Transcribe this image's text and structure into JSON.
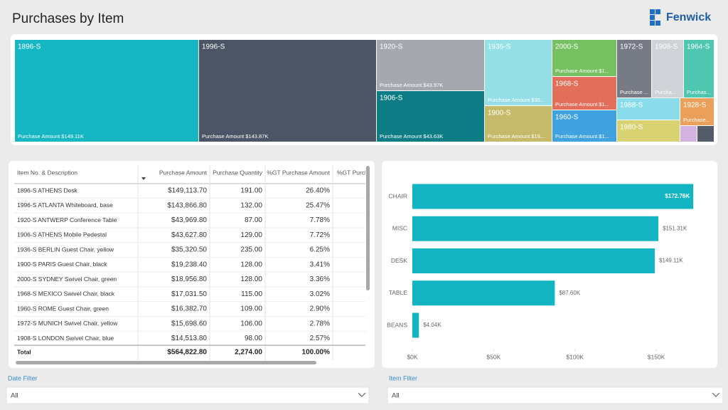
{
  "header": {
    "title": "Purchases by Item",
    "logo": "Fenwick"
  },
  "treemap": {
    "tiles": [
      {
        "label": "1896-S",
        "value_label": "Purchase Amount $149.11K",
        "color": "#16b7c3"
      },
      {
        "label": "1996-S",
        "value_label": "Purchase Amount $143.87K",
        "color": "#4c5566"
      },
      {
        "label": "1920-S",
        "value_label": "Purchase Amount $43.97K",
        "color": "#a5a8ae"
      },
      {
        "label": "1906-S",
        "value_label": "Purchase Amount $43.63K",
        "color": "#0e7c84"
      },
      {
        "label": "1936-S",
        "value_label": "Purchase Amount $35...",
        "color": "#95dfe6"
      },
      {
        "label": "1900-S",
        "value_label": "Purchase Amount $19...",
        "color": "#c5ba6a"
      },
      {
        "label": "2000-S",
        "value_label": "Purchase Amount $1...",
        "color": "#77c062"
      },
      {
        "label": "1968-S",
        "value_label": "Purchase Amount $1...",
        "color": "#e36f5a"
      },
      {
        "label": "1960-S",
        "value_label": "Purchase Amount $1...",
        "color": "#40a2de"
      },
      {
        "label": "1972-S",
        "value_label": "Purchase ...",
        "color": "#767b85"
      },
      {
        "label": "1908-S",
        "value_label": "Purcha...",
        "color": "#cfd2d6"
      },
      {
        "label": "1964-S",
        "value_label": "Purchas...",
        "color": "#4fc7b0"
      },
      {
        "label": "1988-S",
        "value_label": null,
        "color": "#8adcea"
      },
      {
        "label": "1980-S",
        "value_label": null,
        "color": "#d8d272"
      },
      {
        "label": "1928-S",
        "value_label": "Purchase...",
        "color": "#eaa05b"
      },
      {
        "label": null,
        "value_label": null,
        "color": "#d4b2e1"
      },
      {
        "label": null,
        "value_label": null,
        "color": "#545c6a"
      }
    ]
  },
  "table": {
    "columns": [
      "Item No. & Description",
      "Purchase Amount",
      "Purchase Quantity",
      "%GT Purchase Amount",
      "%GT Purch"
    ],
    "rows": [
      [
        "1896-S ATHENS Desk",
        "$149,113.70",
        "191.00",
        "26.40%"
      ],
      [
        "1996-S ATLANTA Whiteboard, base",
        "$143,866.80",
        "132.00",
        "25.47%"
      ],
      [
        "1920-S ANTWERP Conference Table",
        "$43,969.80",
        "87.00",
        "7.78%"
      ],
      [
        "1906-S ATHENS Mobile Pedestal",
        "$43,627.80",
        "129.00",
        "7.72%"
      ],
      [
        "1936-S BERLIN Guest Chair, yellow",
        "$35,320.50",
        "235.00",
        "6.25%"
      ],
      [
        "1900-S PARIS Guest Chair, black",
        "$19,238.40",
        "128.00",
        "3.41%"
      ],
      [
        "2000-S SYDNEY Swivel Chair, green",
        "$18,956.80",
        "128.00",
        "3.36%"
      ],
      [
        "1968-S MEXICO Swivel Chair, black",
        "$17,031.50",
        "115.00",
        "3.02%"
      ],
      [
        "1960-S ROME Guest Chair, green",
        "$16,382.70",
        "109.00",
        "2.90%"
      ],
      [
        "1972-S MUNICH Swivel Chair, yellow",
        "$15,698.60",
        "106.00",
        "2.78%"
      ],
      [
        "1908-S LONDON Swivel Chair, blue",
        "$14,513.80",
        "98.00",
        "2.57%"
      ]
    ],
    "total": [
      "Total",
      "$564,822.80",
      "2,274.00",
      "100.00%"
    ]
  },
  "chart_data": {
    "type": "bar",
    "orientation": "horizontal",
    "categories": [
      "CHAIR",
      "MISC",
      "DESK",
      "TABLE",
      "BEANS"
    ],
    "values": [
      172760,
      151310,
      149110,
      87600,
      4040
    ],
    "value_labels": [
      "$172.76K",
      "$151.31K",
      "$149.11K",
      "$87.60K",
      "$4.04K"
    ],
    "color": "#12b5c1",
    "xlim": [
      0,
      180000
    ],
    "xticks": [
      {
        "value": 0,
        "label": "$0K"
      },
      {
        "value": 50000,
        "label": "$50K"
      },
      {
        "value": 100000,
        "label": "$100K"
      },
      {
        "value": 150000,
        "label": "$150K"
      }
    ]
  },
  "filters": [
    {
      "label": "Date Filter",
      "value": "All"
    },
    {
      "label": "Item Filter",
      "value": "All"
    }
  ]
}
